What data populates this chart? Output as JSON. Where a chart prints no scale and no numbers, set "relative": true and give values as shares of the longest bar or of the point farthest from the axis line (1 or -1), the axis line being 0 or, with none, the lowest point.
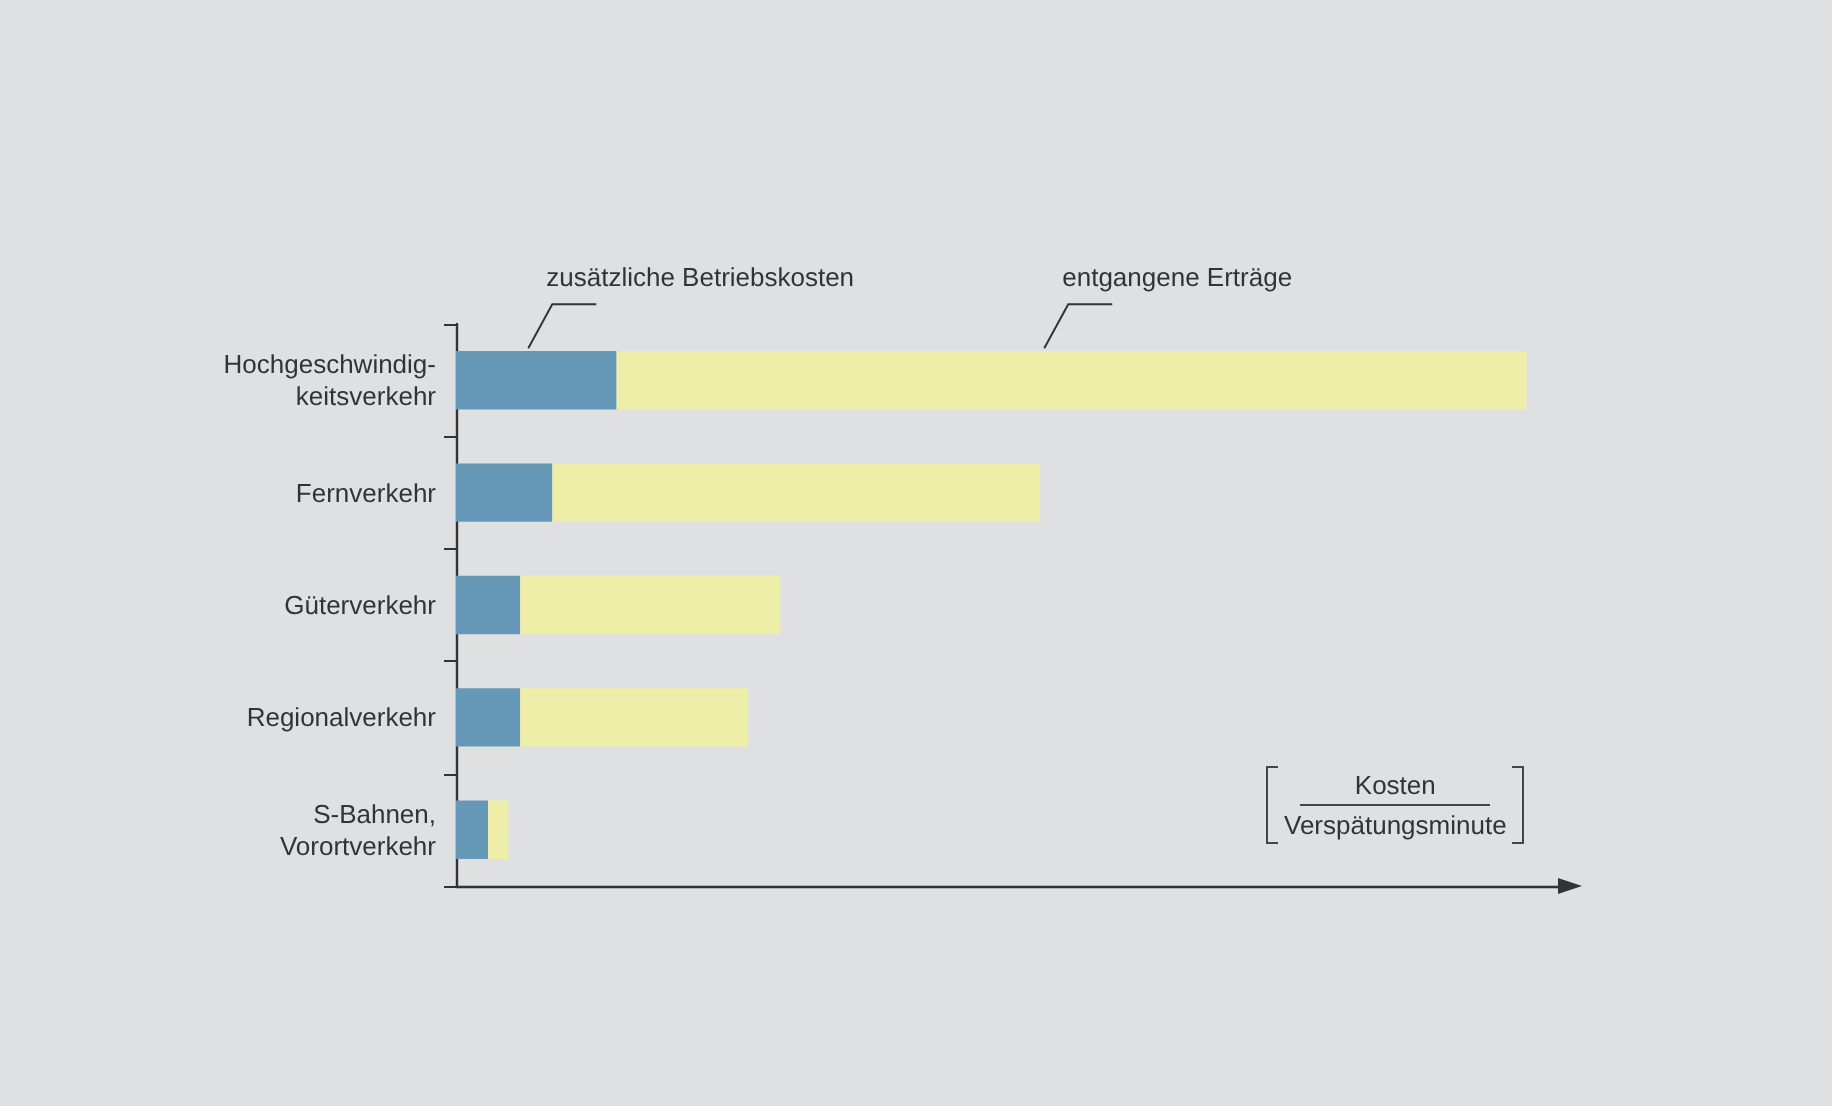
{
  "chart_data": {
    "type": "bar",
    "orientation": "horizontal",
    "stacked": true,
    "relative": true,
    "categories": [
      "Hochgeschwindig-\nkeitsverkehr",
      "Fernverkehr",
      "Güterverkehr",
      "Regionalverkehr",
      "S-Bahnen,\nVorortverkehr"
    ],
    "xlabel": "Kosten\nVerspätungsminute",
    "series": [
      {
        "name": "zusätzliche Betriebskosten",
        "color": "#6699b8",
        "values": [
          0.15,
          0.09,
          0.06,
          0.06,
          0.03
        ]
      },
      {
        "name": "entgangene Erträge",
        "color": "#eeeea8",
        "values": [
          0.85,
          0.455,
          0.243,
          0.213,
          0.019
        ]
      }
    ],
    "legend": false
  }
}
